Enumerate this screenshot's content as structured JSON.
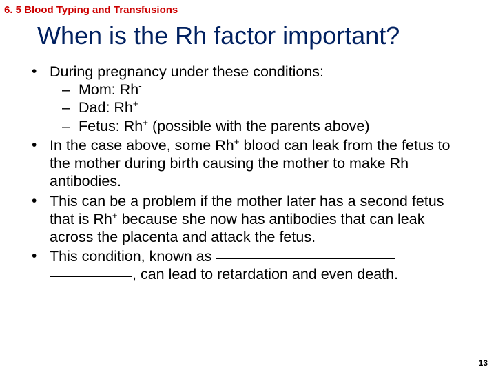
{
  "section_label": "6. 5 Blood Typing and Transfusions",
  "title": "When is the Rh factor important?",
  "bullets": {
    "b1_intro": "During pregnancy under these conditions:",
    "b1_sub1_pre": "Mom: Rh",
    "b1_sub1_sup": "-",
    "b1_sub2_pre": "Dad: Rh",
    "b1_sub2_sup": "+",
    "b1_sub3_pre": "Fetus: Rh",
    "b1_sub3_sup": "+",
    "b1_sub3_post": " (possible with the parents above)",
    "b2_pre": "In the case above, some Rh",
    "b2_sup": "+",
    "b2_post": " blood can leak from the fetus to the mother during birth causing the mother to make Rh antibodies.",
    "b3_pre": "This can be a problem if the mother later has a second fetus that is Rh",
    "b3_sup": "+",
    "b3_post": " because she now has antibodies that can leak across the placenta and attack the fetus.",
    "b4_pre": "This condition, known as ",
    "b4_post": ", can lead to retardation and even death."
  },
  "page_number": "13",
  "colors": {
    "section_label": "#cc0000",
    "title": "#002060",
    "body_text": "#000000",
    "background": "#ffffff"
  },
  "typography": {
    "section_label_fontsize": 15,
    "title_fontsize": 36,
    "body_fontsize": 21.5,
    "pagenum_fontsize": 12,
    "font_family": "Arial"
  }
}
